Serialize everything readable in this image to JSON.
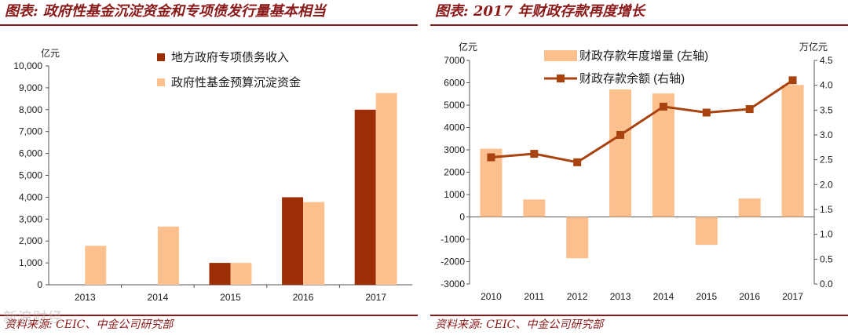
{
  "left": {
    "title": "图表: 政府性基金沉淀资金和专项债发行量基本相当",
    "source": "资料来源: CEIC、中金公司研究部",
    "watermark": "新浪财经"
  },
  "right": {
    "title": "图表: 2017 年财政存款再度增长",
    "source": "资料来源: CEIC、中金公司研究部"
  },
  "colors": {
    "dark": "#9c2e06",
    "light": "#fbc08d",
    "line": "#a8420e",
    "accent": "#8b1a1a"
  },
  "chart_data": [
    {
      "type": "bar",
      "title": "政府性基金沉淀资金和专项债发行量基本相当",
      "unit_label": "亿元",
      "categories": [
        "2013",
        "2014",
        "2015",
        "2016",
        "2017"
      ],
      "series": [
        {
          "name": "地方政府专项债务收入",
          "color": "#9c2e06",
          "values": [
            null,
            null,
            1000,
            4000,
            8000
          ]
        },
        {
          "name": "政府性基金预算沉淀资金",
          "color": "#fbc08d",
          "values": [
            1780,
            2660,
            1000,
            3780,
            8760
          ]
        }
      ],
      "ylim": [
        0,
        10000
      ],
      "yticks": [
        0,
        1000,
        2000,
        3000,
        4000,
        5000,
        6000,
        7000,
        8000,
        9000,
        10000
      ],
      "ytick_labels": [
        "0",
        "1,000",
        "2,000",
        "3,000",
        "4,000",
        "5,000",
        "6,000",
        "7,000",
        "8,000",
        "9,000",
        "10,000"
      ],
      "legend": "top-center",
      "grid": false
    },
    {
      "type": "bar",
      "title": "2017 年财政存款再度增长",
      "left_unit_label": "亿元",
      "right_unit_label": "万亿元",
      "categories": [
        "2010",
        "2011",
        "2012",
        "2013",
        "2014",
        "2015",
        "2016",
        "2017"
      ],
      "series": [
        {
          "name": "财政存款年度增量 (左轴)",
          "type": "bar",
          "axis": "left",
          "color": "#fbc08d",
          "values": [
            3050,
            780,
            -1850,
            5700,
            5520,
            -1250,
            830,
            5900
          ]
        },
        {
          "name": "财政存款余额 (右轴)",
          "type": "line",
          "axis": "right",
          "color": "#a8420e",
          "values": [
            2.55,
            2.62,
            2.45,
            3.0,
            3.57,
            3.45,
            3.52,
            4.1
          ]
        }
      ],
      "ylim_left": [
        -3000,
        7000
      ],
      "yticks_left": [
        -3000,
        -2000,
        -1000,
        0,
        1000,
        2000,
        3000,
        4000,
        5000,
        6000,
        7000
      ],
      "ylim_right": [
        0.0,
        4.5
      ],
      "yticks_right": [
        "0.0",
        "0.5",
        "1.0",
        "1.5",
        "2.0",
        "2.5",
        "3.0",
        "3.5",
        "4.0",
        "4.5"
      ],
      "legend": "top-center",
      "grid": false
    }
  ]
}
